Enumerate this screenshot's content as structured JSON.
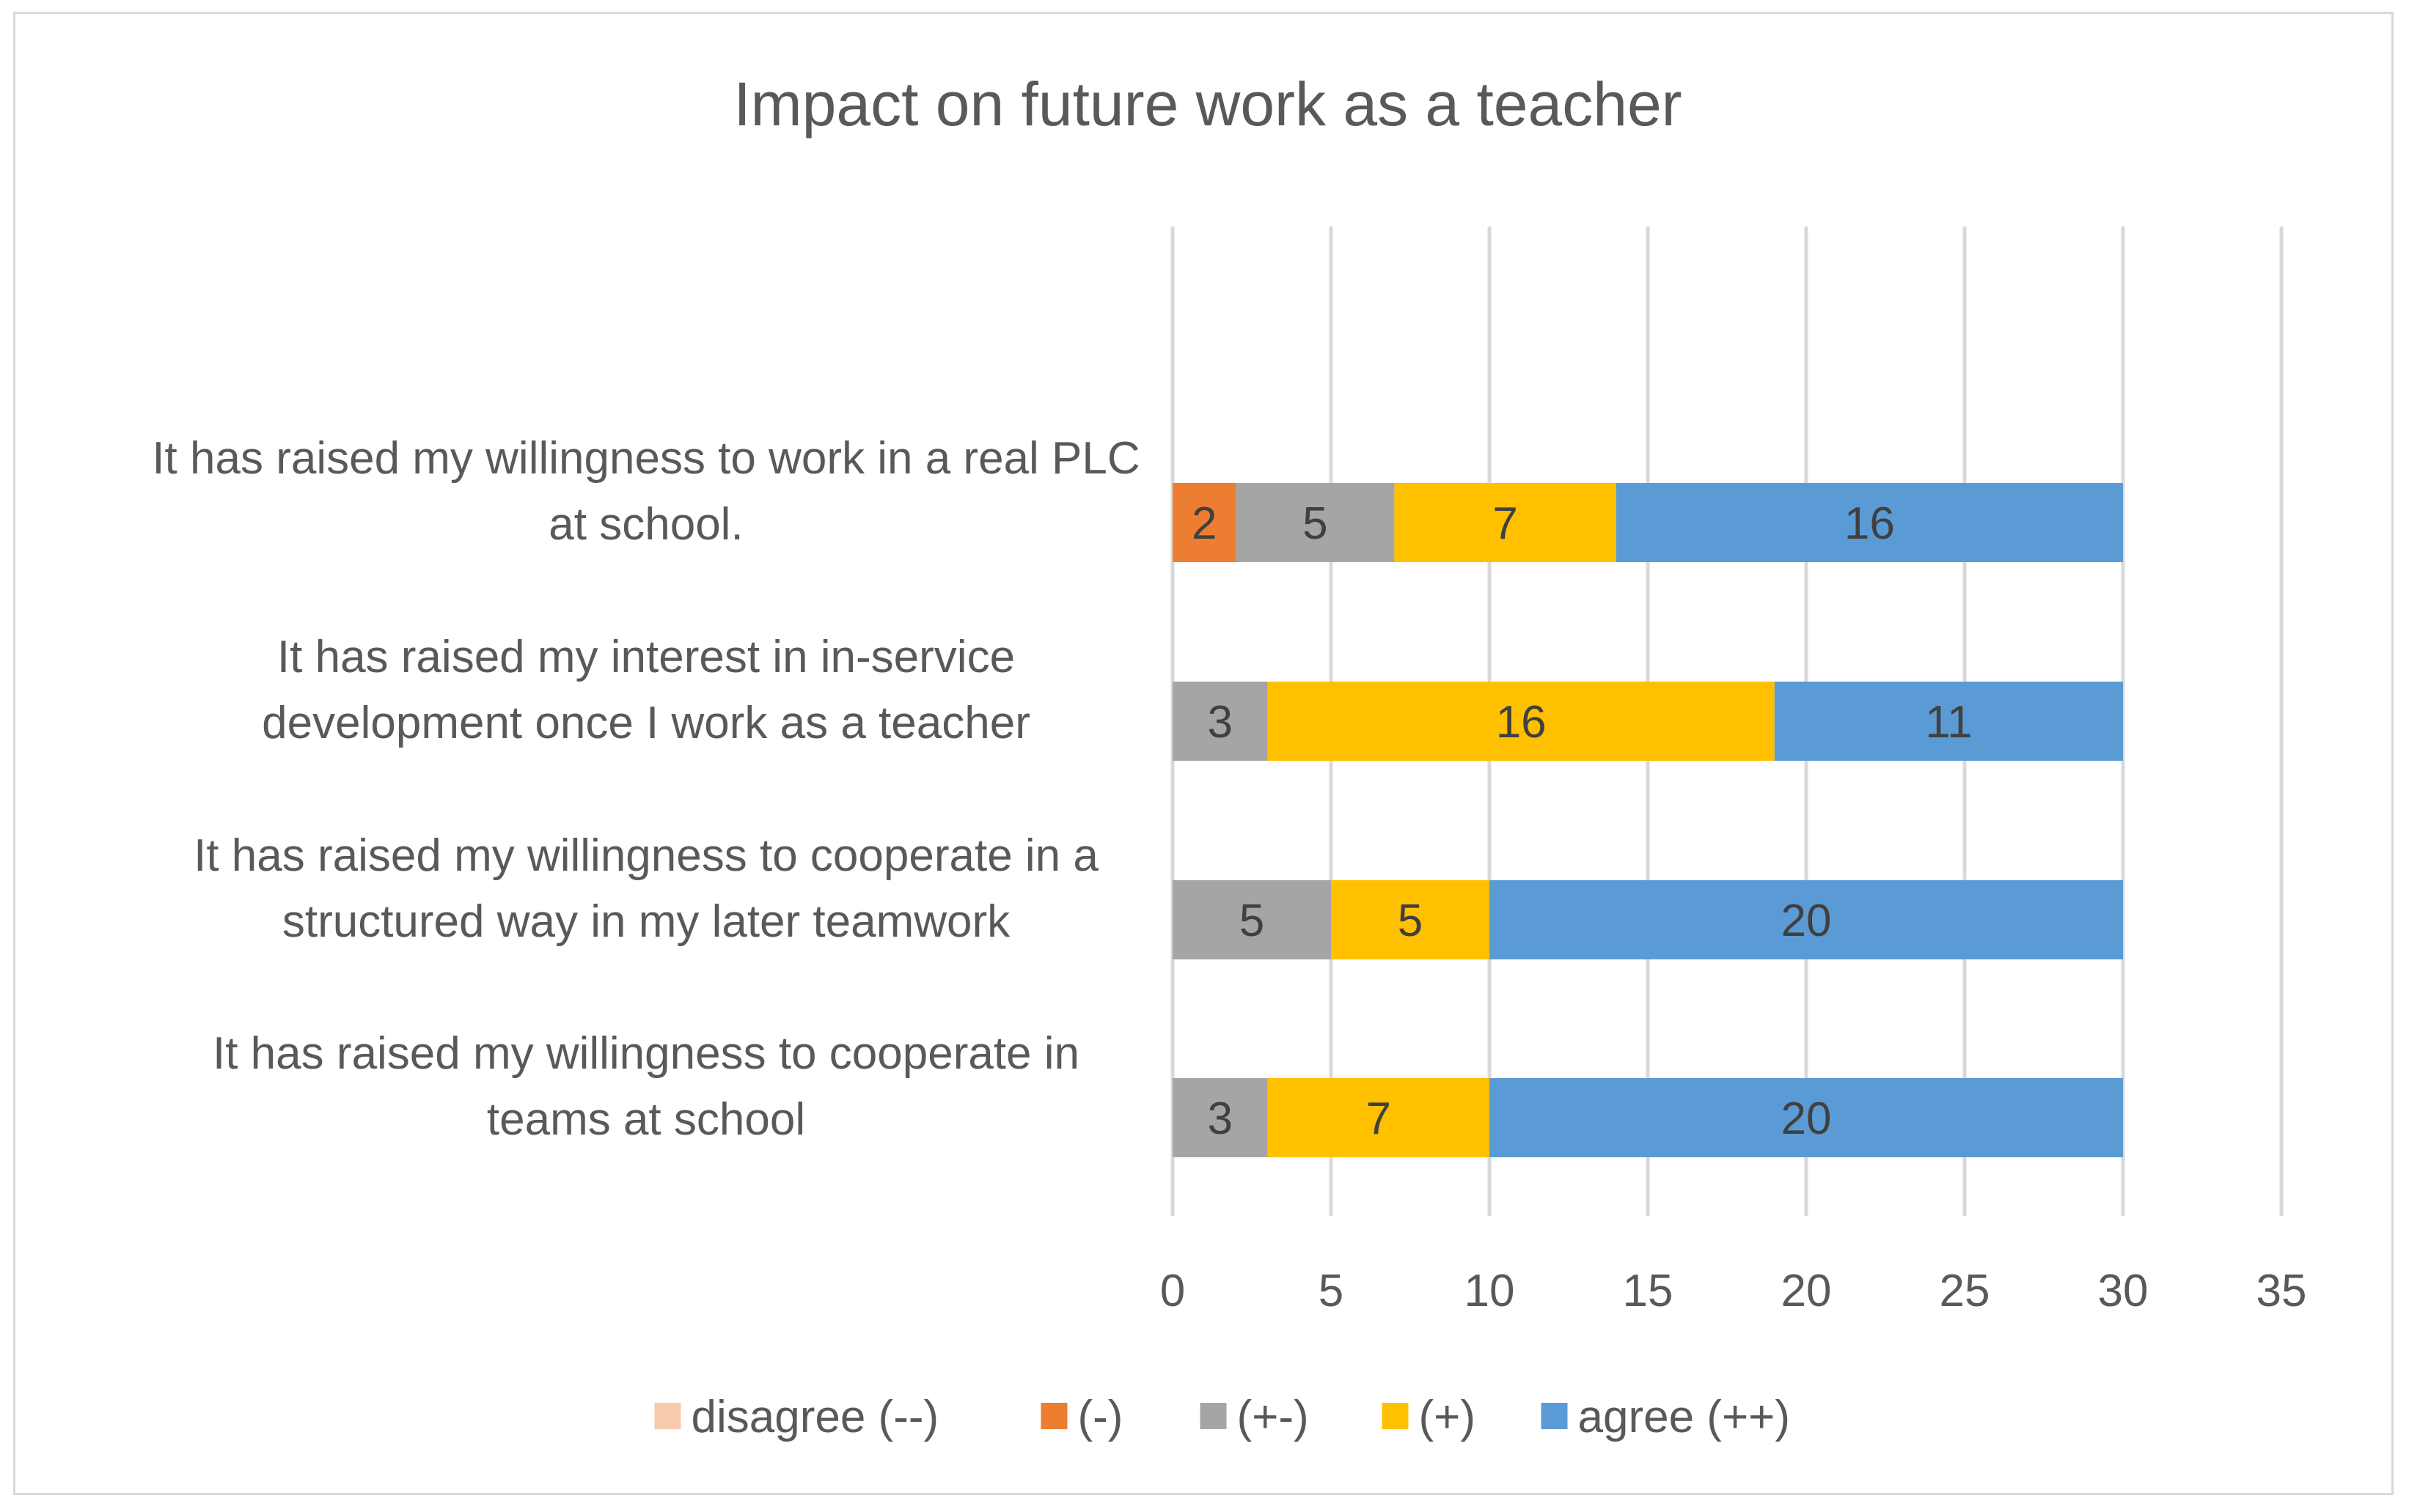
{
  "chart_data": {
    "type": "bar",
    "orientation": "horizontal",
    "stacked": true,
    "title": "Impact on future work as a teacher",
    "categories": [
      "It has raised my willingness to work in a real PLC at school.",
      "It has raised my interest in in-service development once I work as a teacher",
      "It has raised my willingness to cooperate in a structured way in my later teamwork",
      "It has raised my willingness to cooperate in teams at school"
    ],
    "category_lines": [
      [
        "It has raised my willingness to work in a real PLC",
        "at school."
      ],
      [
        "It has raised my interest in in-service",
        "development once I work as a teacher"
      ],
      [
        "It has raised my willingness to cooperate in a",
        "structured way in my later teamwork"
      ],
      [
        "It has raised my willingness to cooperate in",
        "teams at school"
      ]
    ],
    "series": [
      {
        "name": "disagree (--)",
        "color": "#f8cbad",
        "values": [
          0,
          0,
          0,
          0
        ]
      },
      {
        "name": "(-)",
        "color": "#ed7d31",
        "values": [
          2,
          0,
          0,
          0
        ]
      },
      {
        "name": "(+-)",
        "color": "#a5a5a5",
        "values": [
          5,
          3,
          5,
          3
        ]
      },
      {
        "name": "(+)",
        "color": "#ffc000",
        "values": [
          7,
          16,
          5,
          7
        ]
      },
      {
        "name": "agree (++)",
        "color": "#5b9bd5",
        "values": [
          16,
          11,
          20,
          20
        ]
      }
    ],
    "xlim": [
      0,
      35
    ],
    "xticks": [
      0,
      5,
      10,
      15,
      20,
      25,
      30,
      35
    ],
    "xlabel": "",
    "ylabel": "",
    "grid": "vertical",
    "legend_position": "bottom",
    "data_labels": true
  }
}
